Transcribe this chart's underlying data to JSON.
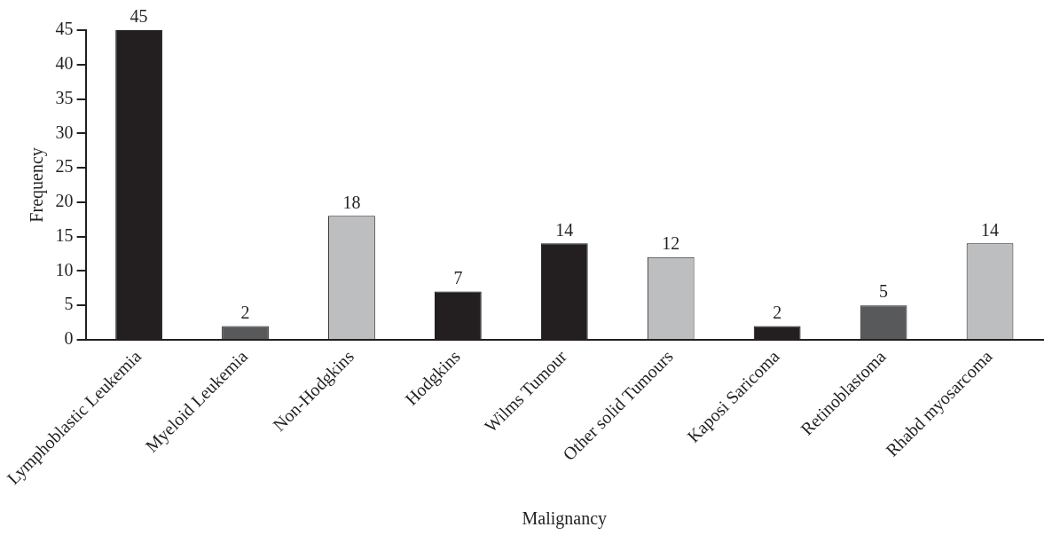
{
  "chart_data": {
    "type": "bar",
    "xlabel": "Malignancy",
    "ylabel": "Frequency",
    "categories": [
      "Lymphoblastic Leukemia",
      "Myeloid Leukemia",
      "Non-Hodgkins",
      "Hodgkins",
      "Wilms Tumour",
      "Other solid Tumours",
      "Kaposi Saricoma",
      "Retinoblastoma",
      "Rhabd myosarcoma"
    ],
    "values": [
      45,
      2,
      18,
      7,
      14,
      12,
      2,
      5,
      14
    ],
    "colors": [
      "#231f20",
      "#58595b",
      "#bcbec0",
      "#231f20",
      "#231f20",
      "#bcbec0",
      "#231f20",
      "#58595b",
      "#bcbec0"
    ],
    "ylim": [
      0,
      45
    ],
    "yticks": [
      0,
      5,
      10,
      15,
      20,
      25,
      30,
      35,
      40,
      45
    ],
    "grid": false,
    "legend": false,
    "data_labels": true
  }
}
